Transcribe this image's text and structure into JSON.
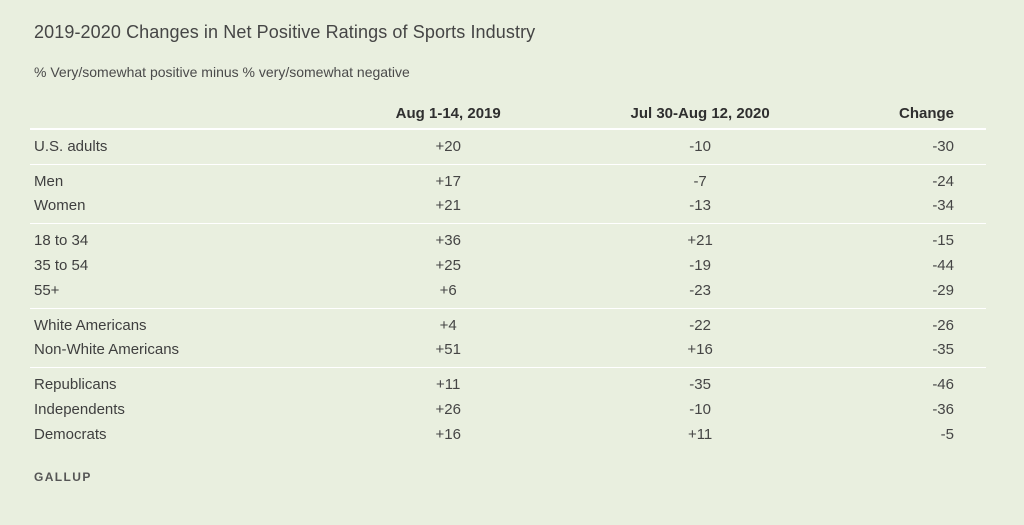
{
  "title": "2019-2020 Changes in Net Positive Ratings of Sports Industry",
  "subtitle": "% Very/somewhat positive minus % very/somewhat negative",
  "columns": [
    "",
    "Aug 1-14, 2019",
    "Jul 30-Aug 12, 2020",
    "Change"
  ],
  "groups": [
    {
      "rows": [
        {
          "label": "U.S. adults",
          "v2019": "+20",
          "v2020": "-10",
          "change": "-30"
        }
      ]
    },
    {
      "rows": [
        {
          "label": "Men",
          "v2019": "+17",
          "v2020": "-7",
          "change": "-24"
        },
        {
          "label": "Women",
          "v2019": "+21",
          "v2020": "-13",
          "change": "-34"
        }
      ]
    },
    {
      "rows": [
        {
          "label": "18 to 34",
          "v2019": "+36",
          "v2020": "+21",
          "change": "-15"
        },
        {
          "label": "35 to 54",
          "v2019": "+25",
          "v2020": "-19",
          "change": "-44"
        },
        {
          "label": "55+",
          "v2019": "+6",
          "v2020": "-23",
          "change": "-29"
        }
      ]
    },
    {
      "rows": [
        {
          "label": "White Americans",
          "v2019": "+4",
          "v2020": "-22",
          "change": "-26"
        },
        {
          "label": "Non-White Americans",
          "v2019": "+51",
          "v2020": "+16",
          "change": "-35"
        }
      ]
    },
    {
      "rows": [
        {
          "label": "Republicans",
          "v2019": "+11",
          "v2020": "-35",
          "change": "-46"
        },
        {
          "label": "Independents",
          "v2019": "+26",
          "v2020": "-10",
          "change": "-36"
        },
        {
          "label": "Democrats",
          "v2019": "+16",
          "v2020": "+11",
          "change": "-5"
        }
      ]
    }
  ],
  "footer": "GALLUP"
}
